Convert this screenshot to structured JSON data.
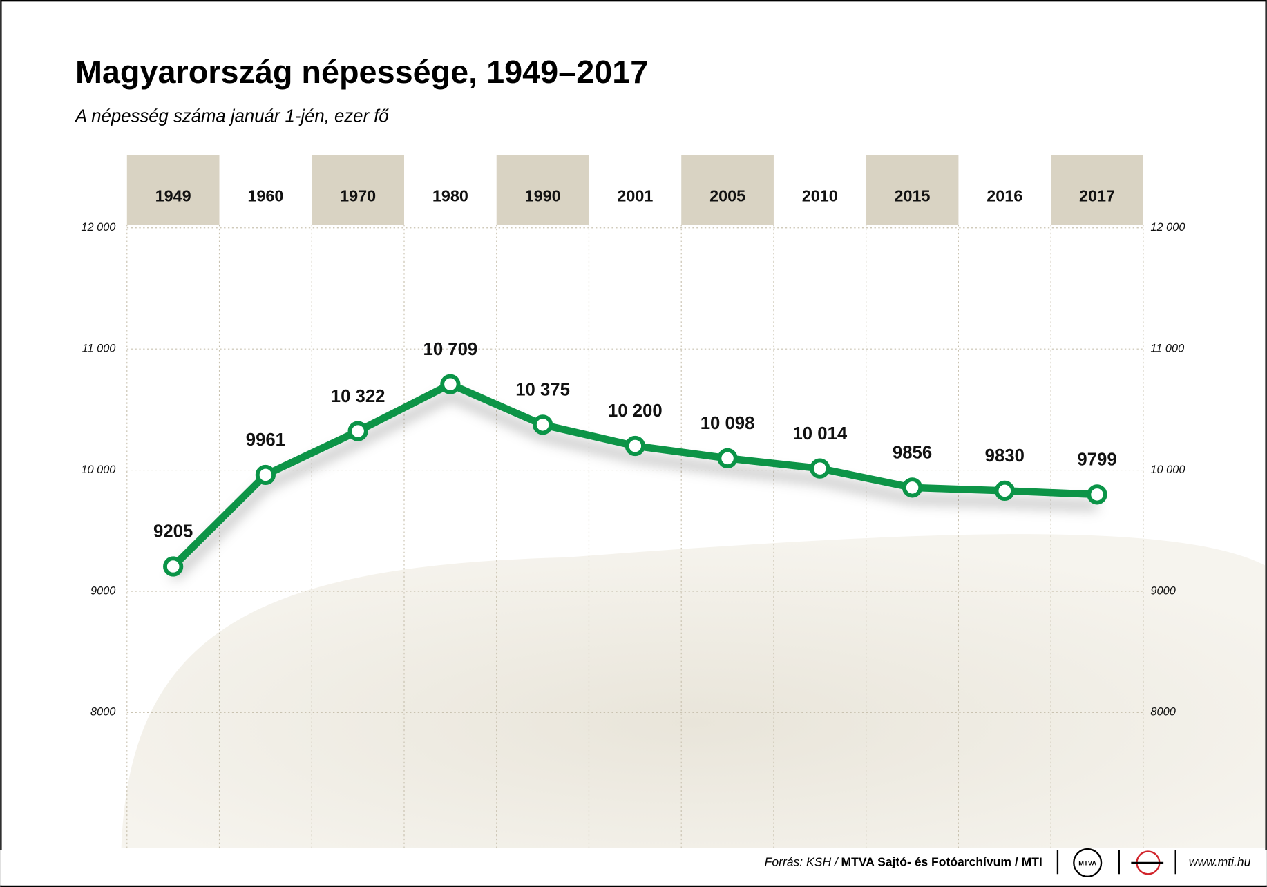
{
  "chart_data": {
    "type": "line",
    "title": "Magyarország népessége, 1949–2017",
    "subtitle": "A népesség száma január 1-jén, ezer fő",
    "categories": [
      "1949",
      "1960",
      "1970",
      "1980",
      "1990",
      "2001",
      "2005",
      "2010",
      "2015",
      "2016",
      "2017"
    ],
    "values": [
      9205,
      9961,
      10322,
      10709,
      10375,
      10200,
      10098,
      10014,
      9856,
      9830,
      9799
    ],
    "value_labels": [
      "9205",
      "9961",
      "10 322",
      "10 709",
      "10 375",
      "10 200",
      "10 098",
      "10 014",
      "9856",
      "9830",
      "9799"
    ],
    "color": "#0a9447",
    "ylim": [
      7000,
      12000
    ],
    "yticks": [
      8000,
      9000,
      {
        "value": 10000,
        "label": "10 000"
      },
      {
        "value": 11000,
        "label": "11 000"
      },
      {
        "value": 12000,
        "label": "12 000"
      }
    ],
    "grid": true
  },
  "footer": {
    "source_prefix": "Forrás: KSH /",
    "source": "MTVA Sajtó- és Fotóarchívum / MTI",
    "logo": "MTVA",
    "website": "www.mti.hu"
  }
}
